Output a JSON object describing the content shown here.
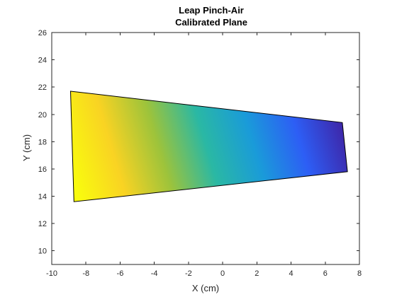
{
  "chart_data": {
    "type": "surface",
    "title": "Leap Pinch-Air",
    "subtitle": "Calibrated Plane",
    "xlabel": "X (cm)",
    "ylabel": "Y (cm)",
    "xlim": [
      -10,
      8
    ],
    "ylim": [
      9,
      26
    ],
    "xticks": [
      -10,
      -8,
      -6,
      -4,
      -2,
      0,
      2,
      4,
      6,
      8
    ],
    "yticks": [
      10,
      12,
      14,
      16,
      18,
      20,
      22,
      24,
      26
    ],
    "colormap": [
      "#3e26a8",
      "#2d5ef5",
      "#1a9bd9",
      "#2ab8a4",
      "#9dc33b",
      "#f9d323",
      "#f9fb0e"
    ],
    "box": "on",
    "grid": "off",
    "plane": {
      "corners": [
        {
          "x": -8.9,
          "y": 21.7,
          "label": "top-left"
        },
        {
          "x": 7.0,
          "y": 19.4,
          "label": "top-right"
        },
        {
          "x": 7.3,
          "y": 15.8,
          "label": "bottom-right"
        },
        {
          "x": -8.7,
          "y": 13.6,
          "label": "bottom-left"
        }
      ],
      "gradient_high_corner": "bottom-left",
      "gradient_low_corner": "top-right"
    }
  }
}
